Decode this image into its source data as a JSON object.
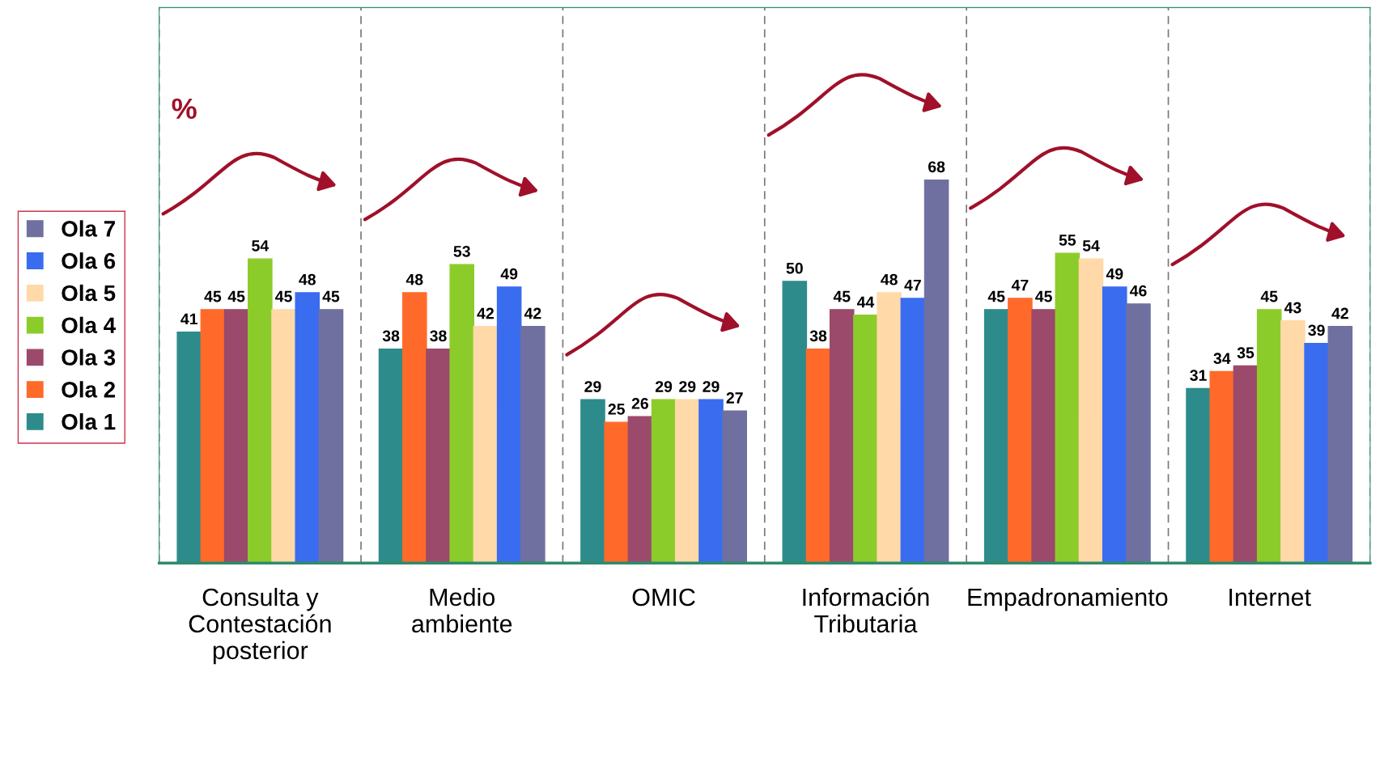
{
  "chart_data": {
    "type": "bar",
    "categories": [
      "Consulta y\nContestación\nposterior",
      "Medio\nambiente",
      "OMIC",
      "Información\nTributaria",
      "Empadronamiento",
      "Internet"
    ],
    "series": [
      {
        "name": "Ola 1",
        "color": "#2e8b8b",
        "values": [
          41,
          38,
          29,
          50,
          45,
          31
        ]
      },
      {
        "name": "Ola 2",
        "color": "#ff6a2a",
        "values": [
          45,
          48,
          25,
          38,
          47,
          34
        ]
      },
      {
        "name": "Ola 3",
        "color": "#9b4a6b",
        "values": [
          45,
          38,
          26,
          45,
          45,
          35
        ]
      },
      {
        "name": "Ola 4",
        "color": "#8ccc2a",
        "values": [
          54,
          53,
          29,
          44,
          55,
          45
        ]
      },
      {
        "name": "Ola 5",
        "color": "#ffd9a8",
        "values": [
          45,
          42,
          29,
          48,
          54,
          43
        ]
      },
      {
        "name": "Ola 6",
        "color": "#3a6cf0",
        "values": [
          48,
          49,
          29,
          47,
          49,
          39
        ]
      },
      {
        "name": "Ola 7",
        "color": "#7070a0",
        "values": [
          45,
          42,
          27,
          68,
          46,
          42
        ]
      }
    ],
    "annotations": [
      "%"
    ],
    "data_labels": true,
    "grid": "x",
    "legend": "left",
    "tick_labels": "x"
  }
}
